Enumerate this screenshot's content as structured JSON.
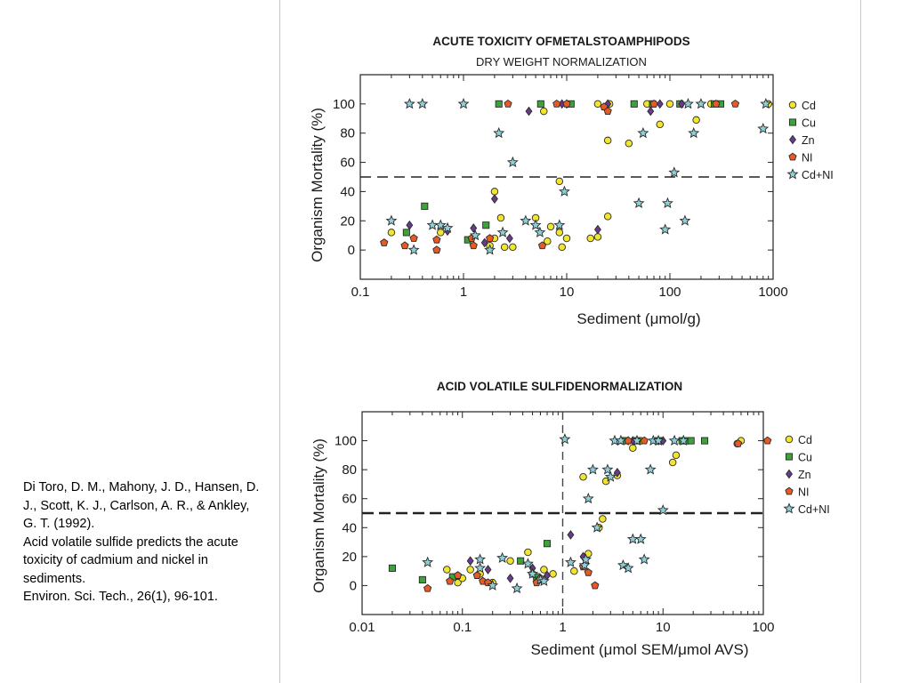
{
  "citation": {
    "authors": "Di Toro, D. M., Mahony, J. D., Hansen, D. J., Scott, K. J., Carlson, A. R., & Ankley, G. T. (1992).",
    "title": "Acid volatile sulfide predicts the acute toxicity of cadmium and nickel in sediments.",
    "journal": "Environ. Sci. Tech., 26(1), 96-101."
  },
  "colors": {
    "Cd": "#f2e52e",
    "Cu": "#3da23a",
    "Zn": "#6a3a8c",
    "Ni": "#e85a25",
    "CdNi": "#8fd0d8",
    "dash": "#222222"
  },
  "chart_data": [
    {
      "type": "scatter",
      "title": "ACUTE TOXICITY OFMETALSTOAMPHIPODS",
      "subtitle": "DRY WEIGHT NORMALIZATION",
      "xlabel": "Sediment (μmol/g)",
      "ylabel": "Organism Mortality (%)",
      "x_scale": "log",
      "xlim": [
        0.1,
        1000
      ],
      "ylim": [
        -20,
        120
      ],
      "x_ticks": [
        "0.1",
        "1",
        "10",
        "100",
        "1000"
      ],
      "y_ticks": [
        "0",
        "20",
        "40",
        "60",
        "80",
        "100"
      ],
      "threshold_y": 50,
      "legend_position": "right",
      "series": [
        {
          "name": "Cd",
          "marker": "circle",
          "points": [
            [
              0.2,
              12
            ],
            [
              0.6,
              12
            ],
            [
              1.8,
              3
            ],
            [
              2.0,
              40
            ],
            [
              2.0,
              8
            ],
            [
              2.3,
              22
            ],
            [
              2.5,
              2
            ],
            [
              3.0,
              2
            ],
            [
              5.0,
              22
            ],
            [
              6.0,
              95
            ],
            [
              6.5,
              6
            ],
            [
              7.0,
              16
            ],
            [
              8.5,
              12
            ],
            [
              8.5,
              47
            ],
            [
              9.0,
              2
            ],
            [
              10.0,
              8
            ],
            [
              17.0,
              8
            ],
            [
              20.0,
              100
            ],
            [
              20.0,
              9
            ],
            [
              25.0,
              23
            ],
            [
              25.0,
              75
            ],
            [
              26.0,
              100
            ],
            [
              40.0,
              73
            ],
            [
              60.0,
              100
            ],
            [
              80.0,
              86
            ],
            [
              100.0,
              100
            ],
            [
              180.0,
              89
            ],
            [
              250.0,
              100
            ],
            [
              900.0,
              100
            ]
          ]
        },
        {
          "name": "Cu",
          "marker": "square",
          "points": [
            [
              0.28,
              12
            ],
            [
              0.42,
              30
            ],
            [
              1.1,
              7
            ],
            [
              1.65,
              17
            ],
            [
              2.2,
              100
            ],
            [
              5.6,
              100
            ],
            [
              11.0,
              100
            ],
            [
              45.0,
              100
            ],
            [
              68.0,
              100
            ],
            [
              125.0,
              100
            ],
            [
              270.0,
              100
            ],
            [
              310.0,
              100
            ]
          ]
        },
        {
          "name": "Zn",
          "marker": "diamond",
          "points": [
            [
              0.3,
              17
            ],
            [
              0.7,
              13
            ],
            [
              1.25,
              15
            ],
            [
              1.6,
              5
            ],
            [
              2.0,
              35
            ],
            [
              2.8,
              8
            ],
            [
              4.3,
              95
            ],
            [
              9.0,
              100
            ],
            [
              10.0,
              100
            ],
            [
              20.0,
              14
            ],
            [
              25.0,
              100
            ],
            [
              65.0,
              95
            ],
            [
              80.0,
              100
            ],
            [
              130.0,
              100
            ]
          ]
        },
        {
          "name": "Ni",
          "marker": "pentagon",
          "points": [
            [
              0.17,
              5
            ],
            [
              0.27,
              3
            ],
            [
              0.33,
              8
            ],
            [
              0.55,
              0
            ],
            [
              0.55,
              7
            ],
            [
              1.2,
              8
            ],
            [
              1.25,
              3
            ],
            [
              1.8,
              8
            ],
            [
              2.7,
              100
            ],
            [
              5.8,
              3
            ],
            [
              8.0,
              100
            ],
            [
              10.0,
              100
            ],
            [
              23.0,
              98
            ],
            [
              25.0,
              95
            ],
            [
              70.0,
              100
            ],
            [
              280.0,
              100
            ],
            [
              430.0,
              100
            ]
          ]
        },
        {
          "name": "Cd+Ni",
          "marker": "star",
          "points": [
            [
              0.2,
              20
            ],
            [
              0.3,
              100
            ],
            [
              0.33,
              0
            ],
            [
              0.4,
              100
            ],
            [
              0.5,
              17
            ],
            [
              0.6,
              17
            ],
            [
              0.7,
              15
            ],
            [
              1.0,
              100
            ],
            [
              1.3,
              10
            ],
            [
              1.8,
              0
            ],
            [
              2.2,
              80
            ],
            [
              2.4,
              12
            ],
            [
              3.0,
              60
            ],
            [
              4.0,
              20
            ],
            [
              5.0,
              17
            ],
            [
              5.5,
              12
            ],
            [
              8.5,
              17
            ],
            [
              9.5,
              40
            ],
            [
              50.0,
              32
            ],
            [
              55.0,
              80
            ],
            [
              90.0,
              14
            ],
            [
              95.0,
              32
            ],
            [
              110.0,
              53
            ],
            [
              140.0,
              20
            ],
            [
              150.0,
              100
            ],
            [
              170.0,
              80
            ],
            [
              200.0,
              100
            ],
            [
              800.0,
              83
            ],
            [
              850.0,
              100
            ]
          ]
        }
      ]
    },
    {
      "type": "scatter",
      "title": "ACID VOLATILE SULFIDENORMALIZATION",
      "subtitle": "",
      "xlabel": "Sediment (μmol SEM/μmol AVS)",
      "ylabel": "Organism Mortality (%)",
      "x_scale": "log",
      "xlim": [
        0.01,
        100
      ],
      "ylim": [
        -20,
        120
      ],
      "x_ticks": [
        "0.01",
        "0.1",
        "1",
        "10",
        "100"
      ],
      "y_ticks": [
        "0",
        "20",
        "40",
        "60",
        "80",
        "100"
      ],
      "threshold_y": 50,
      "threshold_x": 1,
      "legend_position": "right",
      "series": [
        {
          "name": "Cd",
          "marker": "circle",
          "points": [
            [
              0.07,
              11
            ],
            [
              0.09,
              2
            ],
            [
              0.1,
              5
            ],
            [
              0.12,
              11
            ],
            [
              0.15,
              8
            ],
            [
              0.2,
              2
            ],
            [
              0.3,
              17
            ],
            [
              0.45,
              23
            ],
            [
              0.5,
              8
            ],
            [
              0.6,
              4
            ],
            [
              0.65,
              11
            ],
            [
              0.8,
              8
            ],
            [
              1.3,
              10
            ],
            [
              1.6,
              75
            ],
            [
              1.8,
              22
            ],
            [
              2.3,
              40
            ],
            [
              2.5,
              46
            ],
            [
              2.7,
              72
            ],
            [
              3.5,
              76
            ],
            [
              4.0,
              100
            ],
            [
              5.0,
              95
            ],
            [
              6.0,
              100
            ],
            [
              12.5,
              85
            ],
            [
              13.5,
              90
            ],
            [
              55.0,
              98
            ],
            [
              60.0,
              100
            ]
          ]
        },
        {
          "name": "Cu",
          "marker": "square",
          "points": [
            [
              0.02,
              12
            ],
            [
              0.04,
              4
            ],
            [
              0.08,
              6
            ],
            [
              0.38,
              17
            ],
            [
              0.55,
              6
            ],
            [
              0.7,
              29
            ],
            [
              4.2,
              100
            ],
            [
              5.5,
              100
            ],
            [
              9.0,
              100
            ],
            [
              15.5,
              100
            ],
            [
              17.0,
              100
            ],
            [
              19.0,
              100
            ],
            [
              26.0,
              100
            ]
          ]
        },
        {
          "name": "Zn",
          "marker": "diamond",
          "points": [
            [
              0.12,
              17
            ],
            [
              0.18,
              11
            ],
            [
              0.3,
              5
            ],
            [
              0.5,
              12
            ],
            [
              0.7,
              7
            ],
            [
              1.2,
              35
            ],
            [
              1.6,
              20
            ],
            [
              3.5,
              78
            ],
            [
              4.5,
              100
            ],
            [
              5.0,
              100
            ],
            [
              9.0,
              100
            ],
            [
              10.0,
              100
            ]
          ]
        },
        {
          "name": "Ni",
          "marker": "pentagon",
          "points": [
            [
              0.045,
              -2
            ],
            [
              0.075,
              3
            ],
            [
              0.09,
              7
            ],
            [
              0.14,
              7
            ],
            [
              0.16,
              3
            ],
            [
              0.18,
              2
            ],
            [
              0.55,
              2
            ],
            [
              0.6,
              5
            ],
            [
              1.6,
              13
            ],
            [
              1.8,
              9
            ],
            [
              2.1,
              0
            ],
            [
              4.5,
              100
            ],
            [
              6.5,
              100
            ],
            [
              56.0,
              98
            ],
            [
              110.0,
              100
            ]
          ]
        },
        {
          "name": "Cd+Ni",
          "marker": "star",
          "points": [
            [
              0.045,
              16
            ],
            [
              0.15,
              18
            ],
            [
              0.15,
              12
            ],
            [
              0.2,
              0
            ],
            [
              0.25,
              19
            ],
            [
              0.35,
              -2
            ],
            [
              0.45,
              15
            ],
            [
              0.5,
              8
            ],
            [
              0.6,
              4
            ],
            [
              0.65,
              3
            ],
            [
              1.05,
              101
            ],
            [
              1.2,
              16
            ],
            [
              1.65,
              14
            ],
            [
              1.7,
              18
            ],
            [
              1.8,
              60
            ],
            [
              2.0,
              80
            ],
            [
              2.2,
              40
            ],
            [
              2.8,
              80
            ],
            [
              3.0,
              75
            ],
            [
              3.3,
              100
            ],
            [
              3.8,
              100
            ],
            [
              4.0,
              14
            ],
            [
              4.5,
              12
            ],
            [
              5.0,
              32
            ],
            [
              5.5,
              100
            ],
            [
              6.0,
              32
            ],
            [
              6.5,
              18
            ],
            [
              7.5,
              80
            ],
            [
              8.0,
              100
            ],
            [
              9.0,
              100
            ],
            [
              10.0,
              52
            ],
            [
              13.0,
              100
            ],
            [
              16.0,
              100
            ]
          ]
        }
      ]
    }
  ]
}
